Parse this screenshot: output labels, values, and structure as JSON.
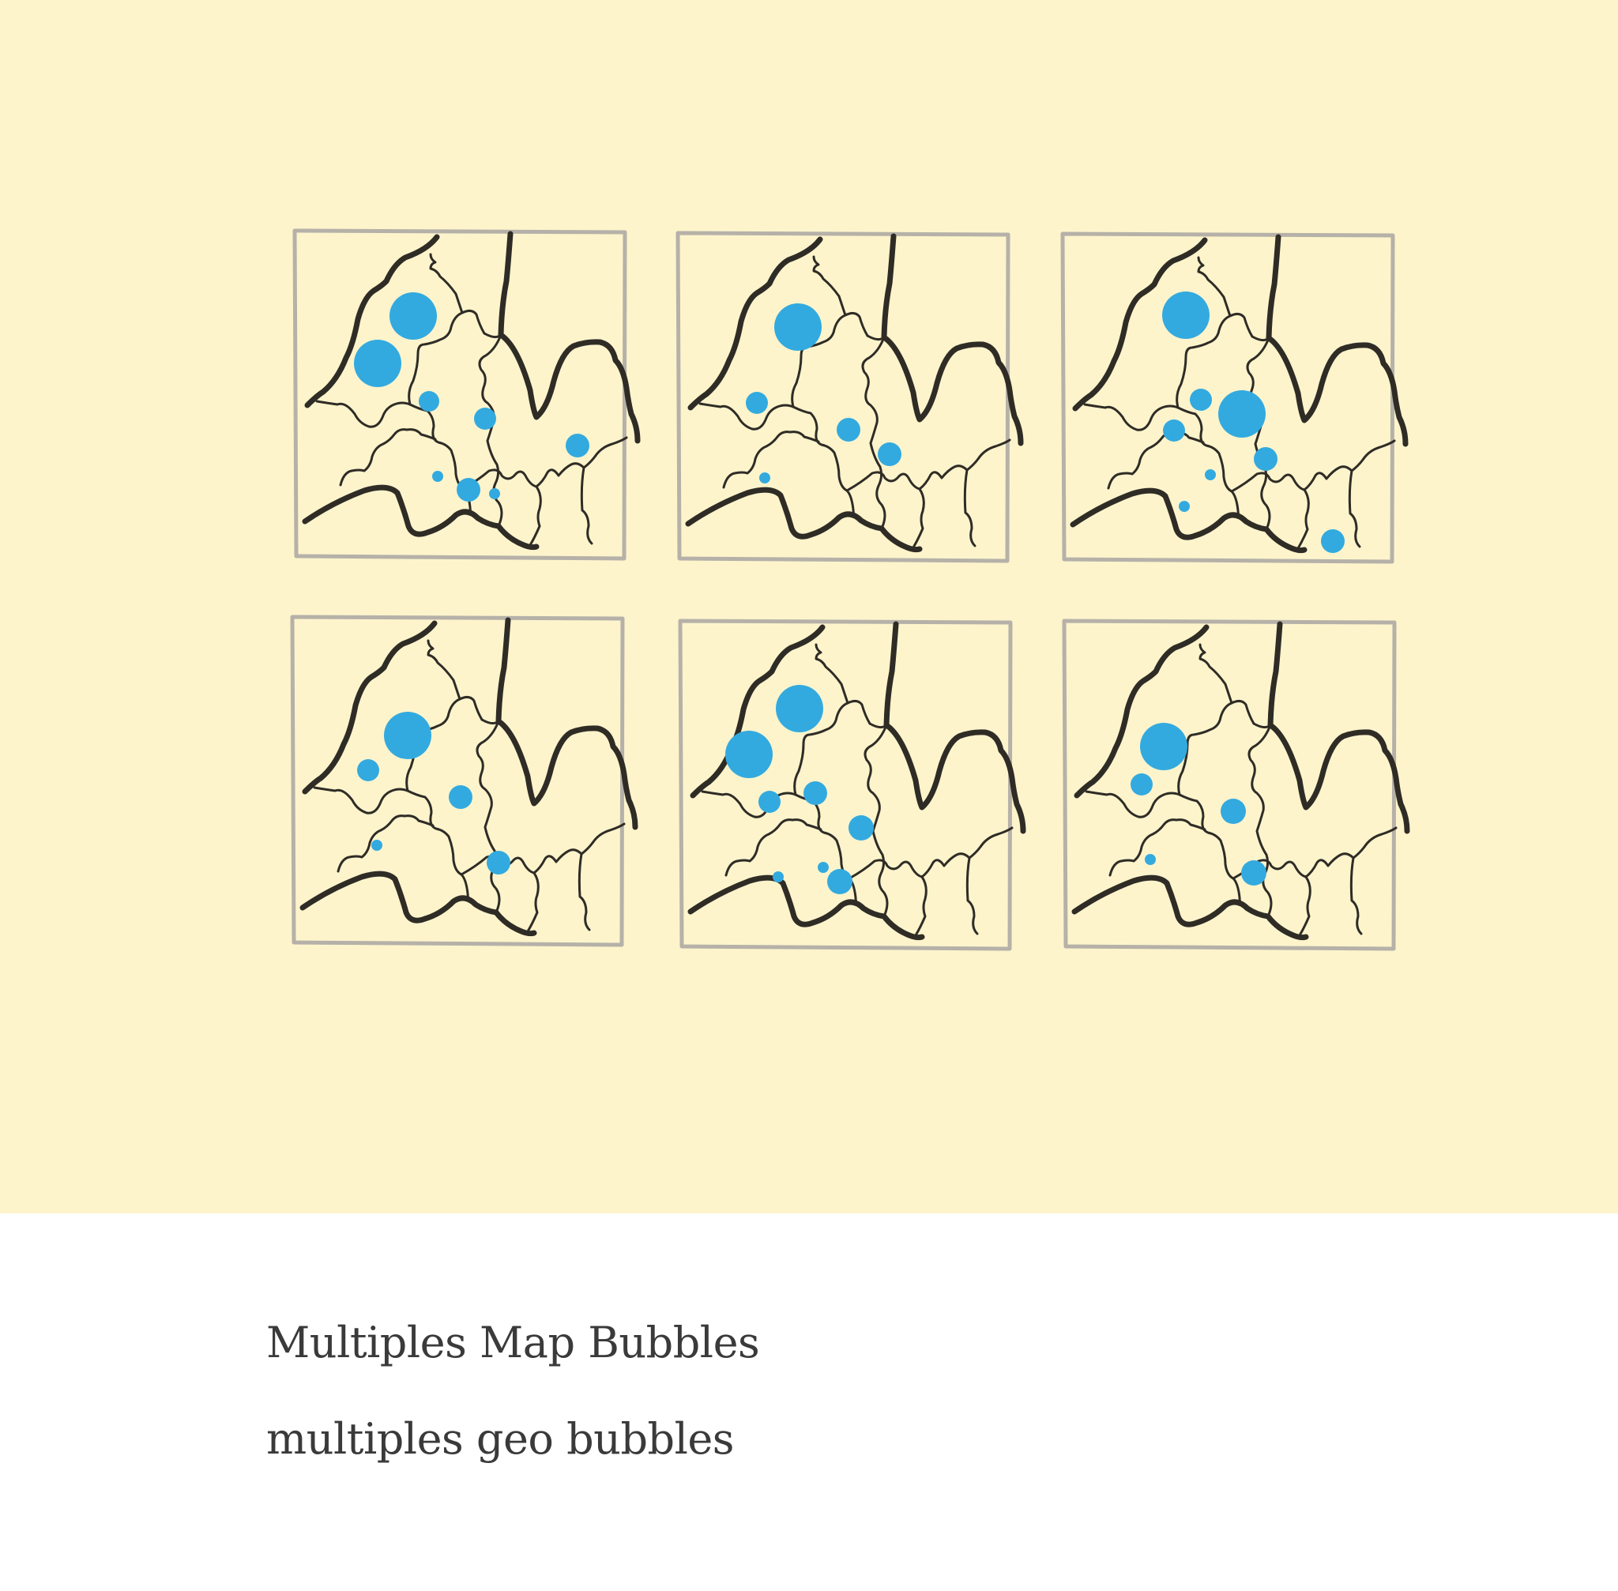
{
  "caption": {
    "title": "Multiples Map Bubbles",
    "subtitle": "multiples geo bubbles"
  },
  "colors": {
    "background": "#fdf4cc",
    "frame": "#b6b1a8",
    "map_outline": "#2f2c26",
    "bubble": "#33aadf",
    "caption_text": "#3a3a3a"
  },
  "chart_data": {
    "type": "small-multiples-map-bubbles",
    "panel_count": 6,
    "grid": {
      "rows": 2,
      "columns": 3
    }
  }
}
